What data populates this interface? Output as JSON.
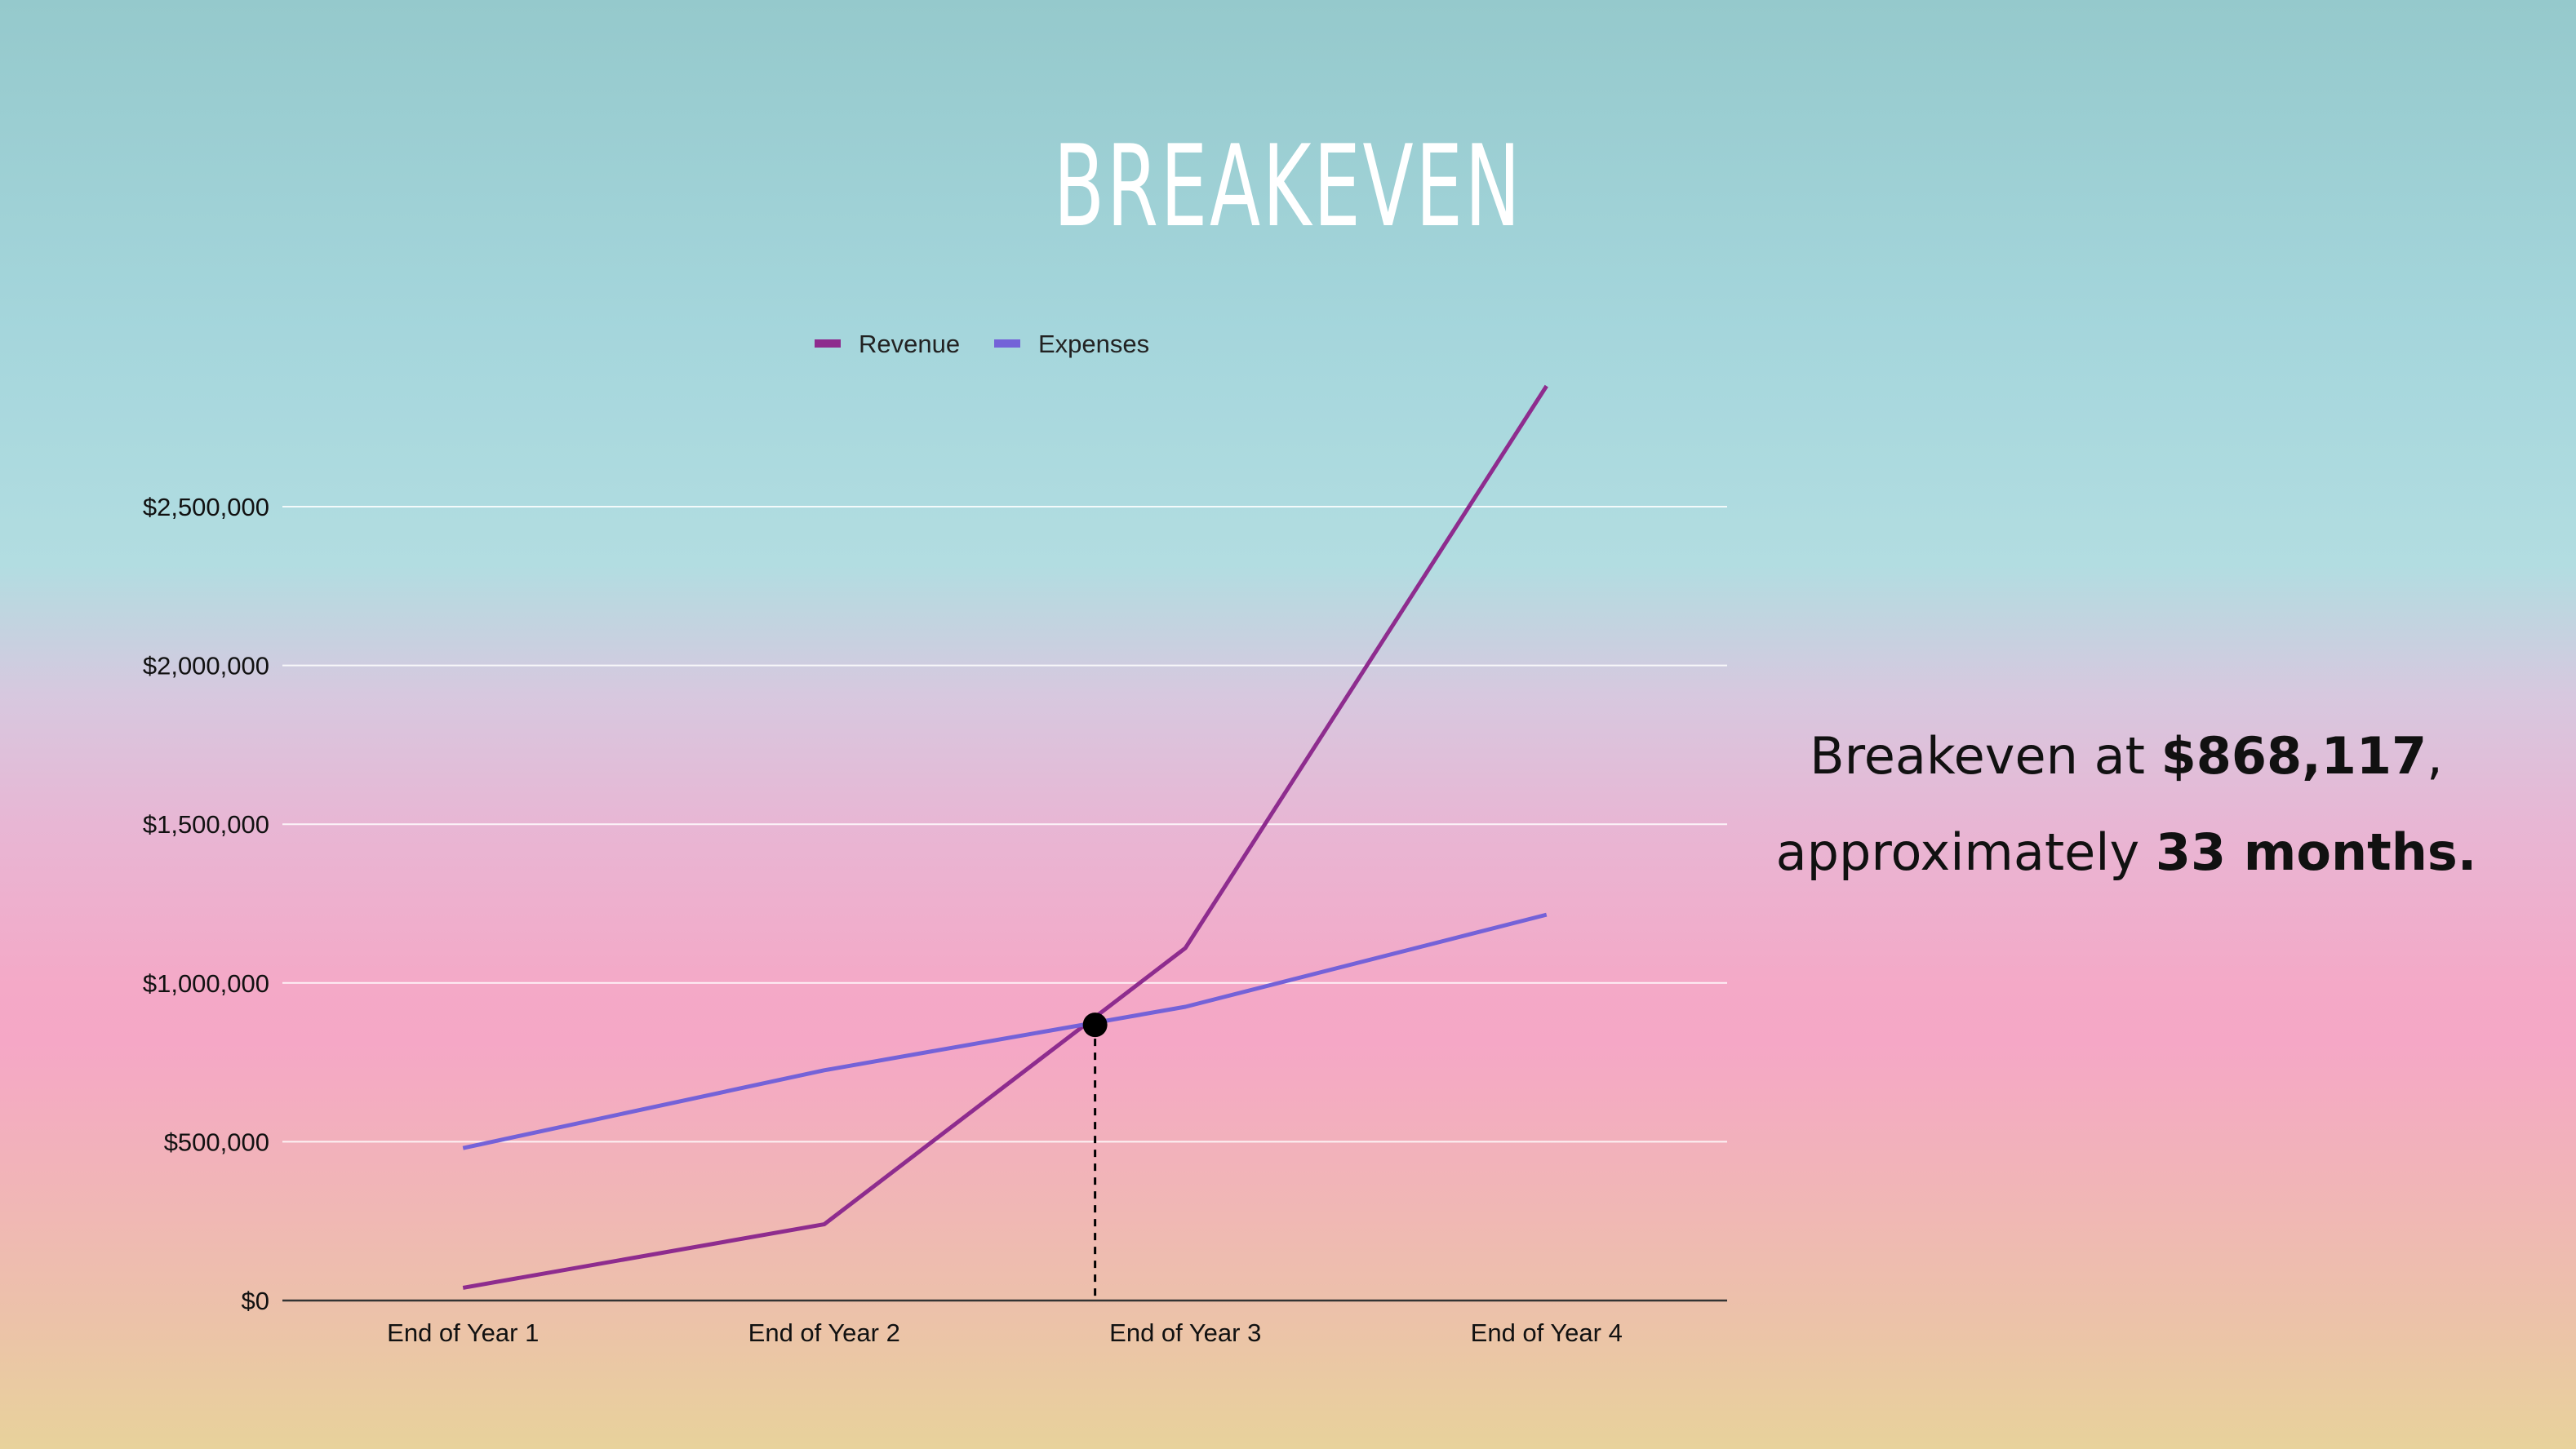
{
  "title": "BREAKEVEN",
  "annotation": {
    "prefix": "Breakeven at ",
    "amount": "$868,117",
    "comma": ",",
    "line2_prefix": "approximately ",
    "duration": "33 months."
  },
  "colors": {
    "revenue": "#8e2c8e",
    "expenses": "#7462d8",
    "marker": "#000000",
    "gridline": "#ffffff",
    "axis": "#333333"
  },
  "chart_data": {
    "type": "line",
    "categories": [
      "End of Year 1",
      "End of Year 2",
      "End of Year 3",
      "End of Year 4"
    ],
    "series": [
      {
        "name": "Revenue",
        "values": [
          40000,
          240000,
          1110000,
          2880000
        ]
      },
      {
        "name": "Expenses",
        "values": [
          480000,
          725000,
          925000,
          1215000
        ]
      }
    ],
    "breakeven": {
      "x": 2.75,
      "y": 868117
    },
    "ylim": [
      0,
      2900000
    ],
    "yticks": [
      0,
      500000,
      1000000,
      1500000,
      2000000,
      2500000
    ],
    "ytick_labels": [
      "$0",
      "$500,000",
      "$1,000,000",
      "$1,500,000",
      "$2,000,000",
      "$2,500,000"
    ],
    "grid": true,
    "legend": "top",
    "xlabel": "",
    "ylabel": ""
  }
}
